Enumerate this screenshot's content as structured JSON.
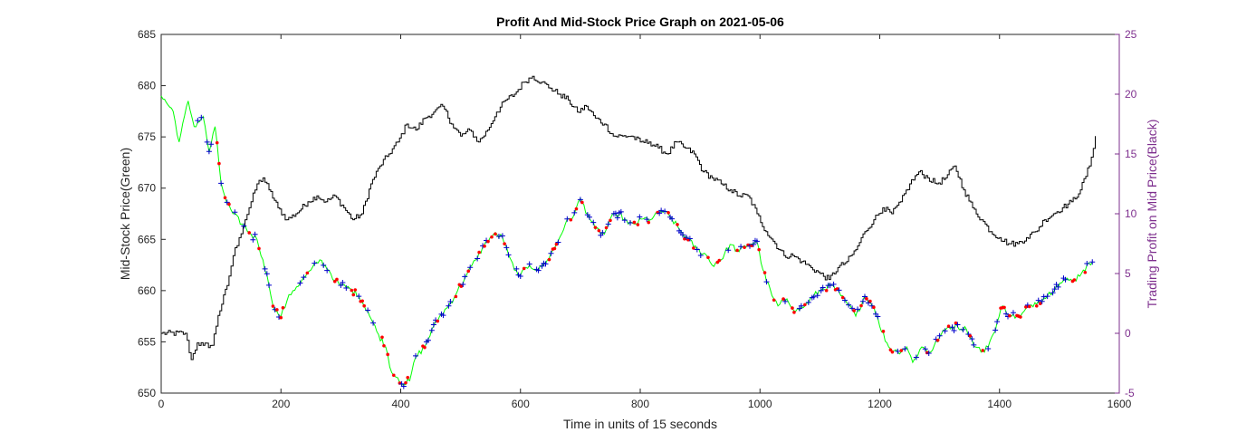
{
  "chart_data": {
    "type": "line",
    "title": "Profit And Mid-Stock Price Graph on 2021-05-06",
    "xlabel": "Time in units of 15 seconds",
    "ylabel_left": "Mid-Stock Price(Green)",
    "ylabel_right": "Trading Profit on Mid Price(Black)",
    "xlim": [
      0,
      1600
    ],
    "ylim_left": [
      650,
      685
    ],
    "ylim_right": [
      -5,
      25
    ],
    "x_ticks": [
      0,
      200,
      400,
      600,
      800,
      1000,
      1200,
      1400,
      1600
    ],
    "x_tick_labels": [
      "0",
      "200",
      "400",
      "600",
      "800",
      "1000",
      "1200",
      "1400",
      "1600"
    ],
    "y_left_ticks": [
      650,
      655,
      660,
      665,
      670,
      675,
      680,
      685
    ],
    "y_left_tick_labels": [
      "650",
      "655",
      "660",
      "665",
      "670",
      "675",
      "680",
      "685"
    ],
    "y_right_ticks": [
      -5,
      0,
      5,
      10,
      15,
      20,
      25
    ],
    "y_right_tick_labels": [
      "-5",
      "0",
      "5",
      "10",
      "15",
      "20",
      "25"
    ],
    "grid": false,
    "colors": {
      "mid_price": "#00ff00",
      "profit": "#000000",
      "buy_marker": "#0000cc",
      "sell_marker": "#ff0000",
      "right_axis": "#7e2f8e",
      "axis": "#262626"
    },
    "series": [
      {
        "name": "Mid-Stock Price",
        "axis": "left",
        "color": "#00ff00",
        "x": [
          0,
          20,
          30,
          45,
          55,
          70,
          80,
          90,
          100,
          110,
          120,
          135,
          150,
          160,
          170,
          180,
          190,
          200,
          210,
          220,
          235,
          250,
          265,
          280,
          290,
          300,
          315,
          330,
          345,
          360,
          375,
          385,
          395,
          405,
          415,
          425,
          440,
          455,
          465,
          480,
          495,
          510,
          525,
          540,
          555,
          570,
          580,
          590,
          600,
          615,
          630,
          645,
          660,
          675,
          690,
          700,
          712,
          725,
          740,
          750,
          765,
          780,
          790,
          805,
          820,
          835,
          850,
          865,
          880,
          895,
          910,
          920,
          935,
          950,
          965,
          980,
          995,
          1005,
          1020,
          1030,
          1045,
          1060,
          1075,
          1090,
          1105,
          1120,
          1135,
          1145,
          1160,
          1175,
          1190,
          1200,
          1215,
          1230,
          1245,
          1255,
          1270,
          1285,
          1300,
          1315,
          1330,
          1345,
          1360,
          1375,
          1390,
          1405,
          1420,
          1435,
          1450,
          1465,
          1480,
          1495,
          1510,
          1525,
          1540,
          1555
        ],
        "y": [
          679,
          677.5,
          674.5,
          678.5,
          676,
          677,
          673.5,
          676,
          670.5,
          668.5,
          667.5,
          666.5,
          665.5,
          665,
          663,
          660.5,
          658,
          657.5,
          659,
          660,
          661,
          662,
          663,
          662,
          661,
          660.5,
          660.2,
          659.5,
          658,
          656,
          654.5,
          652,
          651.5,
          650.8,
          651.2,
          653.5,
          654.5,
          656.5,
          657.5,
          658.5,
          660,
          661.5,
          663,
          664.5,
          665.5,
          665.2,
          663.5,
          662,
          661.5,
          662.5,
          662,
          663,
          664.5,
          666.5,
          667.5,
          669,
          667.5,
          666,
          665.5,
          667,
          667.5,
          666.5,
          666.5,
          667,
          667,
          667.8,
          667.2,
          666,
          665,
          664,
          663.5,
          662.5,
          663,
          664.5,
          663.8,
          664.5,
          664.8,
          662,
          659.5,
          658.5,
          659.2,
          658,
          658.5,
          659.5,
          660.2,
          660.5,
          659.5,
          658.8,
          657.5,
          659.5,
          658.5,
          656.5,
          654.5,
          654,
          654.5,
          653,
          654.5,
          654,
          655.5,
          656.5,
          656.5,
          656.2,
          654.5,
          654,
          655.8,
          658.5,
          657.5,
          657.5,
          658.5,
          659,
          659.5,
          660.5,
          661,
          661,
          662,
          662.8
        ]
      },
      {
        "name": "Trading Profit",
        "axis": "right",
        "color": "#000000",
        "x": [
          0,
          40,
          50,
          60,
          70,
          85,
          95,
          110,
          120,
          130,
          140,
          150,
          160,
          170,
          180,
          195,
          210,
          225,
          245,
          260,
          275,
          290,
          305,
          320,
          335,
          350,
          365,
          380,
          395,
          410,
          425,
          440,
          455,
          470,
          485,
          500,
          515,
          530,
          545,
          560,
          575,
          590,
          605,
          620,
          635,
          650,
          665,
          680,
          695,
          710,
          725,
          740,
          755,
          770,
          785,
          800,
          815,
          830,
          845,
          860,
          875,
          890,
          905,
          920,
          935,
          950,
          965,
          980,
          995,
          1010,
          1025,
          1040,
          1055,
          1070,
          1085,
          1100,
          1115,
          1130,
          1145,
          1160,
          1175,
          1190,
          1205,
          1220,
          1235,
          1250,
          1265,
          1280,
          1295,
          1310,
          1325,
          1340,
          1355,
          1370,
          1385,
          1400,
          1415,
          1430,
          1445,
          1460,
          1475,
          1490,
          1505,
          1520,
          1535,
          1550,
          1560
        ],
        "y": [
          0,
          0,
          -2.2,
          -0.8,
          -1,
          -1,
          1.5,
          4,
          6.5,
          8,
          9.5,
          11,
          12.5,
          13,
          12,
          10.5,
          9.5,
          10,
          11,
          11.5,
          11,
          11.5,
          10.5,
          9.5,
          10,
          12.5,
          14,
          15,
          16,
          17.5,
          17,
          18,
          18.5,
          19,
          17.5,
          16.5,
          17,
          16,
          17,
          18.5,
          19.5,
          20,
          21,
          21.5,
          21,
          20.5,
          20,
          19.5,
          18.5,
          19,
          18,
          17.5,
          16.5,
          16.5,
          16.5,
          16,
          16,
          15.5,
          15,
          16,
          15.5,
          15,
          13.5,
          13,
          12.5,
          12,
          11.5,
          11.5,
          10,
          8.5,
          7.5,
          6.5,
          6.5,
          6,
          5.5,
          5,
          4.5,
          5.5,
          6,
          7,
          8.5,
          9.5,
          10.5,
          10,
          11,
          12.5,
          13.5,
          13,
          12.5,
          13,
          14,
          12,
          10.5,
          9.5,
          8.5,
          8,
          7.5,
          7.5,
          8,
          8.5,
          9.5,
          10,
          10.5,
          11,
          12,
          14,
          16.5
        ]
      }
    ]
  }
}
